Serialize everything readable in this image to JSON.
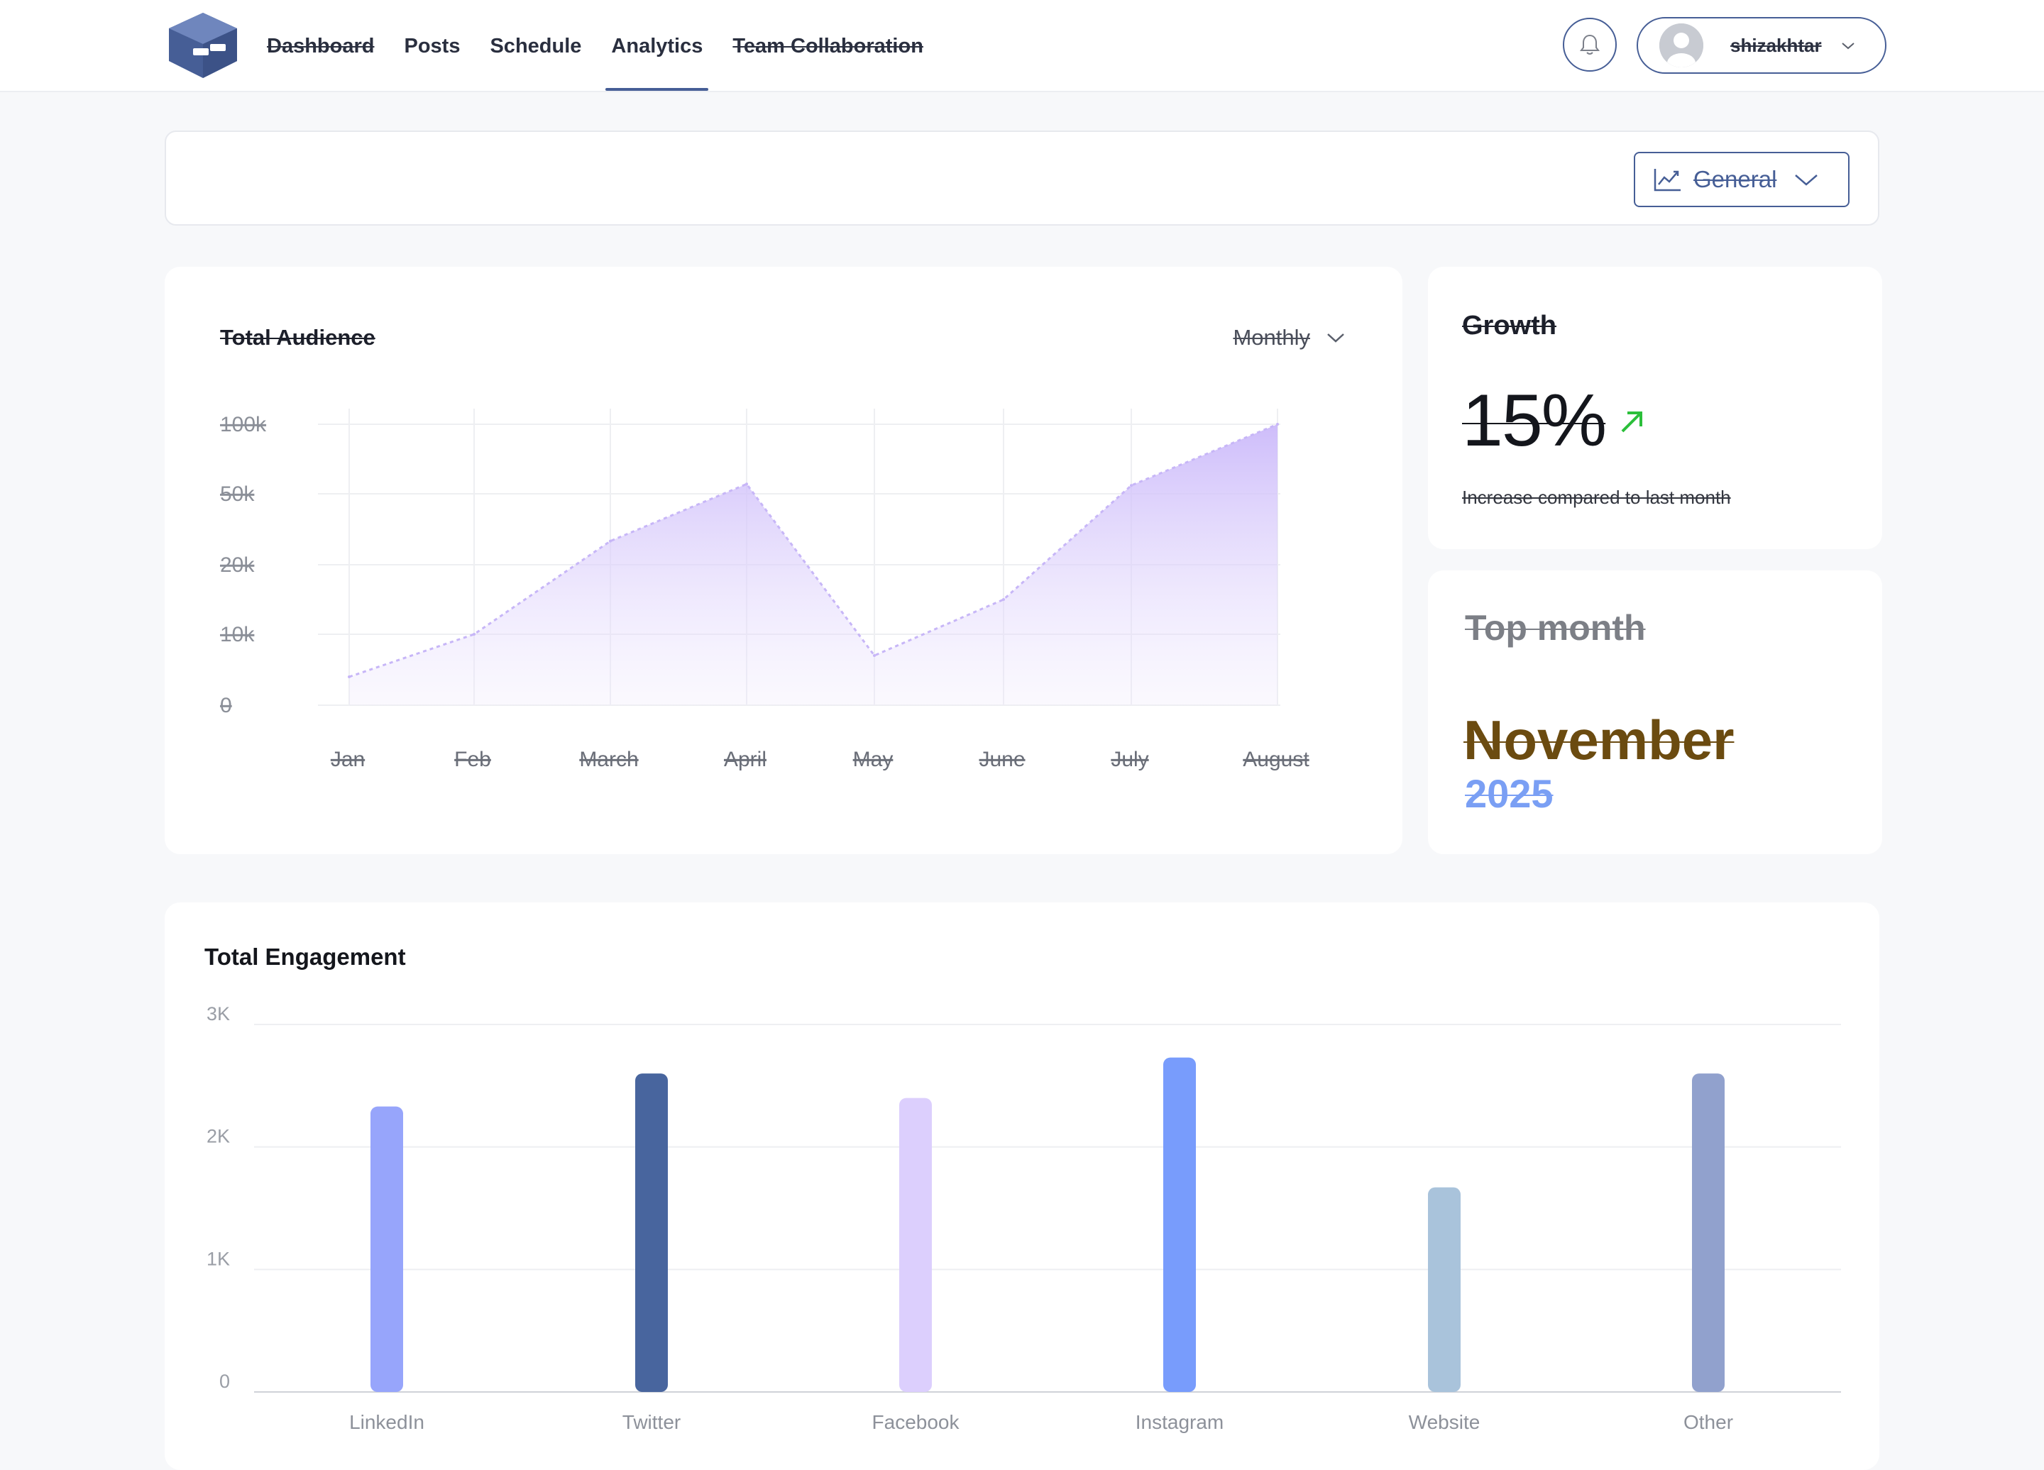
{
  "nav": {
    "items": [
      {
        "label": "Dashboard",
        "active": false
      },
      {
        "label": "Posts",
        "active": false
      },
      {
        "label": "Schedule",
        "active": false
      },
      {
        "label": "Analytics",
        "active": true
      },
      {
        "label": "Team Collaboration",
        "active": false
      }
    ],
    "user_name": "shizakhtar"
  },
  "filter": {
    "label": "General"
  },
  "audience": {
    "title": "Total Audience",
    "period": "Monthly"
  },
  "growth": {
    "title": "Growth",
    "value": "15%",
    "note": "Increase compared to last month"
  },
  "top_month": {
    "title": "Top month",
    "month": "November",
    "year": "2025"
  },
  "engagement": {
    "title": "Total Engagement"
  },
  "colors": {
    "primary": "#465e96",
    "area": "#d9cdfb",
    "up_arrow": "#2bbf3a",
    "month": "#6b4b10",
    "year": "#7a9ff4"
  },
  "chart_data": [
    {
      "type": "area",
      "title": "Total Audience",
      "categories": [
        "Jan",
        "Feb",
        "March",
        "April",
        "May",
        "June",
        "July",
        "August"
      ],
      "y_ticks": [
        "100k",
        "50k",
        "20k",
        "10k",
        "0"
      ],
      "values": [
        4,
        10,
        30,
        57,
        7,
        15,
        56,
        100
      ],
      "grid": true
    },
    {
      "type": "bar",
      "title": "Total Engagement",
      "categories": [
        "LinkedIn",
        "Twitter",
        "Facebook",
        "Instagram",
        "Website",
        "Other"
      ],
      "values": [
        2330,
        2600,
        2400,
        2730,
        1670,
        2600
      ],
      "bar_colors": [
        "#97a5fb",
        "#48659e",
        "#dccffd",
        "#789cfc",
        "#a9c3db",
        "#91a1cd"
      ],
      "y_ticks": [
        "3K",
        "2K",
        "1K",
        "0"
      ],
      "ylim": [
        0,
        3000
      ],
      "grid": true
    }
  ]
}
